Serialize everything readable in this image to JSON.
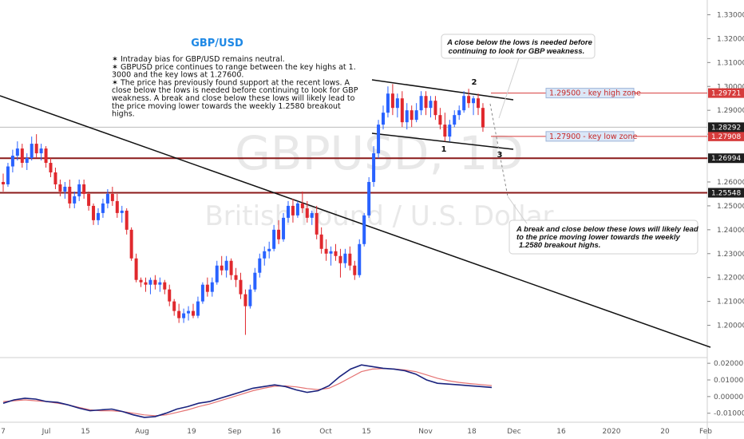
{
  "chart_data": {
    "type": "candlestick",
    "title": "GBP/USD",
    "watermark_symbol": "GBPUSD, 1D",
    "watermark_name": "British Pound / U.S. Dollar",
    "commentary": [
      "✶ Intraday bias for GBP/USD remains neutral.",
      "✶ GBPUSD price continues to range between the key highs at 1.",
      "3000 and the key lows at 1.27600.",
      "✶ The price has previously found support at the recent lows. A",
      "close below the lows is needed before continuing to look for GBP",
      "weakness. A break and close below these lows will likely lead to",
      "the price moving lower towards the weekly 1.2580 breakout",
      "highs."
    ],
    "callout_top": [
      "A close below the lows is needed before",
      "continuing to look for GBP weakness."
    ],
    "callout_bottom": [
      "A break and close below these lows will likely lead",
      "to the price moving lower towards the weekly",
      "1.2580 breakout highs."
    ],
    "x_tick_labels": [
      "7",
      "Jul",
      "15",
      "Aug",
      "19",
      "Sep",
      "16",
      "Oct",
      "15",
      "Nov",
      "18",
      "Dec",
      "16",
      "2020",
      "20",
      "Feb"
    ],
    "y_ticks": [
      "1.33000",
      "1.32000",
      "1.31000",
      "1.30000",
      "1.29000",
      "1.28000",
      "1.27000",
      "1.26000",
      "1.25000",
      "1.24000",
      "1.23000",
      "1.22000",
      "1.21000",
      "1.20000"
    ],
    "y_range": [
      1.1925,
      1.3345
    ],
    "zones": [
      {
        "label": "1.29500 - key high zone",
        "price": 1.29721,
        "tag": "1.29721",
        "color": "#d63c3c"
      },
      {
        "label": "1.27900 - key low zone",
        "price": 1.27908,
        "tag": "1.27908",
        "color": "#d63c3c"
      }
    ],
    "levels": [
      {
        "price": 1.26994,
        "tag": "1.26994",
        "color": "#8b1a1a"
      },
      {
        "price": 1.25548,
        "tag": "1.25548",
        "color": "#8b1a1a"
      }
    ],
    "last_price": {
      "price": 1.28292,
      "tag": "1.28292"
    },
    "pattern_points": [
      "1",
      "2",
      "3"
    ],
    "candles": [
      [
        1.26,
        1.2635,
        1.256,
        1.259
      ],
      [
        1.259,
        1.268,
        1.258,
        1.2665
      ],
      [
        1.2665,
        1.2735,
        1.264,
        1.271
      ],
      [
        1.271,
        1.277,
        1.269,
        1.274
      ],
      [
        1.274,
        1.276,
        1.266,
        1.268
      ],
      [
        1.268,
        1.272,
        1.265,
        1.27
      ],
      [
        1.27,
        1.279,
        1.269,
        1.276
      ],
      [
        1.276,
        1.28,
        1.27,
        1.272
      ],
      [
        1.272,
        1.276,
        1.269,
        1.274
      ],
      [
        1.274,
        1.275,
        1.266,
        1.268
      ],
      [
        1.268,
        1.27,
        1.262,
        1.264
      ],
      [
        1.264,
        1.266,
        1.257,
        1.259
      ],
      [
        1.259,
        1.261,
        1.254,
        1.256
      ],
      [
        1.256,
        1.26,
        1.253,
        1.258
      ],
      [
        1.258,
        1.261,
        1.249,
        1.251
      ],
      [
        1.251,
        1.256,
        1.249,
        1.254
      ],
      [
        1.254,
        1.261,
        1.252,
        1.259
      ],
      [
        1.259,
        1.261,
        1.253,
        1.255
      ],
      [
        1.255,
        1.256,
        1.248,
        1.25
      ],
      [
        1.25,
        1.251,
        1.242,
        1.244
      ],
      [
        1.244,
        1.249,
        1.242,
        1.247
      ],
      [
        1.247,
        1.253,
        1.245,
        1.251
      ],
      [
        1.251,
        1.257,
        1.249,
        1.255
      ],
      [
        1.255,
        1.258,
        1.25,
        1.252
      ],
      [
        1.252,
        1.255,
        1.245,
        1.247
      ],
      [
        1.247,
        1.25,
        1.243,
        1.248
      ],
      [
        1.248,
        1.249,
        1.238,
        1.24
      ],
      [
        1.24,
        1.241,
        1.227,
        1.228
      ],
      [
        1.228,
        1.23,
        1.218,
        1.219
      ],
      [
        1.219,
        1.22,
        1.216,
        1.218
      ],
      [
        1.218,
        1.22,
        1.214,
        1.217
      ],
      [
        1.217,
        1.22,
        1.213,
        1.219
      ],
      [
        1.219,
        1.221,
        1.215,
        1.217
      ],
      [
        1.217,
        1.22,
        1.214,
        1.218
      ],
      [
        1.218,
        1.219,
        1.213,
        1.215
      ],
      [
        1.215,
        1.217,
        1.208,
        1.21
      ],
      [
        1.21,
        1.211,
        1.204,
        1.206
      ],
      [
        1.206,
        1.209,
        1.201,
        1.203
      ],
      [
        1.203,
        1.207,
        1.201,
        1.205
      ],
      [
        1.205,
        1.208,
        1.202,
        1.206
      ],
      [
        1.206,
        1.209,
        1.203,
        1.204
      ],
      [
        1.204,
        1.212,
        1.203,
        1.21
      ],
      [
        1.21,
        1.218,
        1.209,
        1.217
      ],
      [
        1.217,
        1.22,
        1.212,
        1.214
      ],
      [
        1.214,
        1.22,
        1.212,
        1.218
      ],
      [
        1.218,
        1.227,
        1.217,
        1.225
      ],
      [
        1.225,
        1.229,
        1.221,
        1.223
      ],
      [
        1.223,
        1.229,
        1.22,
        1.227
      ],
      [
        1.227,
        1.228,
        1.219,
        1.221
      ],
      [
        1.221,
        1.224,
        1.216,
        1.219
      ],
      [
        1.219,
        1.222,
        1.211,
        1.213
      ],
      [
        1.213,
        1.215,
        1.196,
        1.208
      ],
      [
        1.208,
        1.217,
        1.207,
        1.215
      ],
      [
        1.215,
        1.224,
        1.214,
        1.222
      ],
      [
        1.222,
        1.23,
        1.22,
        1.228
      ],
      [
        1.228,
        1.233,
        1.225,
        1.231
      ],
      [
        1.231,
        1.235,
        1.228,
        1.232
      ],
      [
        1.232,
        1.242,
        1.231,
        1.24
      ],
      [
        1.24,
        1.244,
        1.234,
        1.236
      ],
      [
        1.236,
        1.247,
        1.235,
        1.245
      ],
      [
        1.245,
        1.252,
        1.243,
        1.25
      ],
      [
        1.25,
        1.253,
        1.243,
        1.246
      ],
      [
        1.246,
        1.252,
        1.245,
        1.251
      ],
      [
        1.251,
        1.256,
        1.247,
        1.249
      ],
      [
        1.249,
        1.252,
        1.243,
        1.245
      ],
      [
        1.245,
        1.248,
        1.242,
        1.247
      ],
      [
        1.247,
        1.25,
        1.236,
        1.238
      ],
      [
        1.238,
        1.241,
        1.23,
        1.232
      ],
      [
        1.232,
        1.236,
        1.227,
        1.23
      ],
      [
        1.23,
        1.233,
        1.225,
        1.231
      ],
      [
        1.231,
        1.234,
        1.227,
        1.229
      ],
      [
        1.229,
        1.232,
        1.22,
        1.226
      ],
      [
        1.226,
        1.232,
        1.224,
        1.23
      ],
      [
        1.23,
        1.233,
        1.223,
        1.225
      ],
      [
        1.225,
        1.227,
        1.219,
        1.221
      ],
      [
        1.221,
        1.236,
        1.22,
        1.234
      ],
      [
        1.234,
        1.247,
        1.233,
        1.246
      ],
      [
        1.246,
        1.262,
        1.245,
        1.26
      ],
      [
        1.26,
        1.275,
        1.258,
        1.272
      ],
      [
        1.272,
        1.286,
        1.27,
        1.284
      ],
      [
        1.284,
        1.292,
        1.282,
        1.289
      ],
      [
        1.289,
        1.3,
        1.287,
        1.297
      ],
      [
        1.297,
        1.301,
        1.288,
        1.291
      ],
      [
        1.291,
        1.297,
        1.287,
        1.295
      ],
      [
        1.295,
        1.298,
        1.283,
        1.285
      ],
      [
        1.285,
        1.293,
        1.282,
        1.29
      ],
      [
        1.29,
        1.292,
        1.283,
        1.286
      ],
      [
        1.286,
        1.293,
        1.285,
        1.29
      ],
      [
        1.29,
        1.298,
        1.288,
        1.296
      ],
      [
        1.296,
        1.298,
        1.288,
        1.291
      ],
      [
        1.291,
        1.296,
        1.287,
        1.294
      ],
      [
        1.294,
        1.296,
        1.286,
        1.288
      ],
      [
        1.288,
        1.291,
        1.282,
        1.284
      ],
      [
        1.284,
        1.289,
        1.277,
        1.279
      ],
      [
        1.279,
        1.286,
        1.277,
        1.284
      ],
      [
        1.284,
        1.29,
        1.283,
        1.288
      ],
      [
        1.288,
        1.292,
        1.286,
        1.29
      ],
      [
        1.29,
        1.298,
        1.289,
        1.296
      ],
      [
        1.296,
        1.299,
        1.291,
        1.293
      ],
      [
        1.293,
        1.296,
        1.288,
        1.295
      ],
      [
        1.295,
        1.297,
        1.288,
        1.291
      ],
      [
        1.291,
        1.293,
        1.281,
        1.2829
      ]
    ],
    "candle_colors": {
      "up": "#2962ff",
      "down": "#e0282d"
    },
    "macd": {
      "y_ticks": [
        "0.02000",
        "0.01000",
        "0.00000",
        "-0.01000"
      ],
      "y_range": [
        -0.0135,
        0.0215
      ],
      "macd_line": [
        -0.004,
        -0.002,
        -0.001,
        -0.0015,
        -0.003,
        -0.0035,
        -0.005,
        -0.007,
        -0.0085,
        -0.008,
        -0.0075,
        -0.009,
        -0.011,
        -0.0125,
        -0.012,
        -0.01,
        -0.0075,
        -0.006,
        -0.004,
        -0.003,
        -0.001,
        0.001,
        0.003,
        0.005,
        0.006,
        0.007,
        0.006,
        0.004,
        0.0025,
        0.0035,
        0.0065,
        0.012,
        0.0165,
        0.019,
        0.018,
        0.017,
        0.0165,
        0.0155,
        0.0135,
        0.01,
        0.008,
        0.0075,
        0.007,
        0.0065,
        0.006,
        0.0055
      ],
      "signal_line": [
        -0.003,
        -0.0025,
        -0.002,
        -0.0025,
        -0.003,
        -0.004,
        -0.005,
        -0.0065,
        -0.008,
        -0.0085,
        -0.0085,
        -0.009,
        -0.01,
        -0.011,
        -0.0115,
        -0.011,
        -0.0095,
        -0.008,
        -0.006,
        -0.0045,
        -0.0025,
        -0.0005,
        0.0015,
        0.0035,
        0.005,
        0.0062,
        0.0064,
        0.0058,
        0.0048,
        0.0042,
        0.005,
        0.008,
        0.0115,
        0.015,
        0.0165,
        0.0168,
        0.0166,
        0.016,
        0.015,
        0.013,
        0.011,
        0.0095,
        0.0085,
        0.0078,
        0.0072,
        0.0066
      ],
      "macd_color": "#1a237e",
      "signal_color": "#e57373"
    }
  }
}
